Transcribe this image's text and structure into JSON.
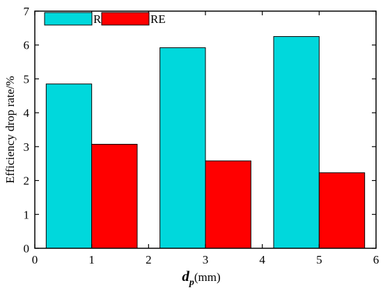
{
  "chart_data": {
    "type": "bar",
    "x_positions": [
      1,
      3,
      5
    ],
    "series": [
      {
        "name": "RH",
        "color": "#00d8dc",
        "values": [
          4.85,
          5.92,
          6.25
        ]
      },
      {
        "name": "RE",
        "color": "#ff0000",
        "values": [
          3.07,
          2.58,
          2.23
        ]
      }
    ],
    "xlim": [
      0,
      6
    ],
    "ylim": [
      0,
      7
    ],
    "xticks": [
      "0",
      "1",
      "2",
      "3",
      "4",
      "5",
      "6"
    ],
    "yticks": [
      "0",
      "1",
      "2",
      "3",
      "4",
      "5",
      "6",
      "7"
    ],
    "ylabel": "Efficiency drop rate/%",
    "xlabel": {
      "main": "d",
      "sub": "p",
      "unit": "(mm)"
    },
    "legend": {
      "placement": "top-left",
      "entries": [
        "RH",
        "RE"
      ]
    },
    "grid": false
  }
}
